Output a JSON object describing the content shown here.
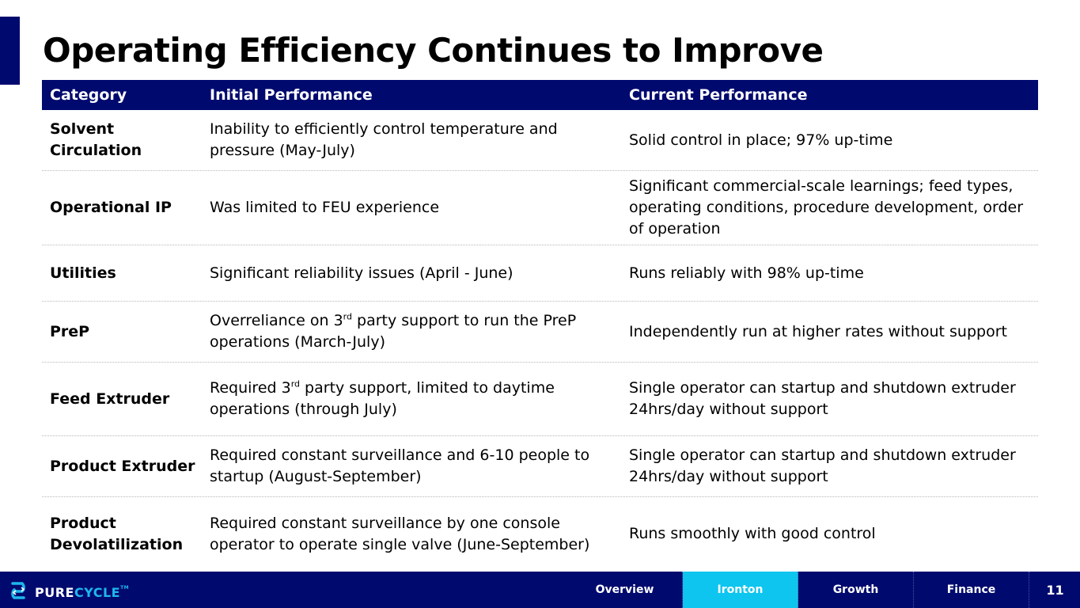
{
  "title": "Operating Efficiency Continues to Improve",
  "table": {
    "headers": [
      "Category",
      "Initial Performance",
      "Current Performance"
    ],
    "rows": [
      {
        "category": "Solvent Circulation",
        "initial": {
          "pre": "Inability to efficiently control temperature and pressure (May-July)"
        },
        "current": "Solid control in place; 97% up-time"
      },
      {
        "category": "Operational IP",
        "initial": {
          "pre": "Was limited to FEU experience"
        },
        "current": "Significant commercial-scale learnings; feed types, operating conditions, procedure development, order of operation"
      },
      {
        "category": "Utilities",
        "initial": {
          "pre": "Significant reliability issues (April - June)"
        },
        "current": "Runs reliably with 98% up-time"
      },
      {
        "category": "PreP",
        "initial": {
          "pre": "Overreliance on 3",
          "sup": "rd",
          "post": " party support to run the PreP operations (March-July)"
        },
        "current": "Independently run at higher rates without support"
      },
      {
        "category": "Feed Extruder",
        "initial": {
          "pre": "Required 3",
          "sup": "rd",
          "post": " party support, limited to daytime operations (through July)"
        },
        "current": "Single operator can startup and shutdown extruder 24hrs/day without support"
      },
      {
        "category": "Product Extruder",
        "initial": {
          "pre": "Required constant surveillance and 6-10 people to startup (August-September)"
        },
        "current": "Single operator can startup and shutdown extruder 24hrs/day without support"
      },
      {
        "category": "Product Devolatilization",
        "initial": {
          "pre": "Required constant surveillance by one console operator to operate single valve (June-September)"
        },
        "current": "Runs smoothly with good control"
      }
    ]
  },
  "footer": {
    "logo": {
      "part1": "PURE",
      "part2": "CYCLE",
      "tm": "TM",
      "icon": "purecycle-logo-icon"
    },
    "nav": [
      {
        "label": "Overview",
        "active": false
      },
      {
        "label": "Ironton",
        "active": true
      },
      {
        "label": "Growth",
        "active": false
      },
      {
        "label": "Finance",
        "active": false
      }
    ],
    "page_number": "11"
  },
  "colors": {
    "navy": "#000A6E",
    "cyan": "#0DC5EE",
    "logo_cyan": "#1EB7EE"
  }
}
